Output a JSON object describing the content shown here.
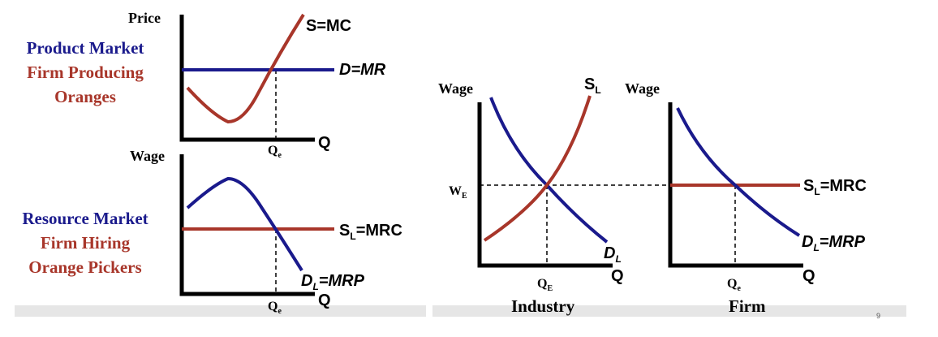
{
  "colors": {
    "blue": "#1a1a8c",
    "red": "#a8362a",
    "axis": "#000000",
    "shadow": "#e4e4e4"
  },
  "product_panel": {
    "line1": "Product Market",
    "line2": "Firm Producing",
    "line3": "Oranges",
    "y_axis": "Price",
    "x_axis": "Q",
    "x_tick": "Q",
    "x_tick_sub": "e",
    "supply_label": "S=MC",
    "demand_label": "D=MR"
  },
  "resource_panel": {
    "line1": "Resource Market",
    "line2": "Firm Hiring",
    "line3": "Orange Pickers",
    "y_axis": "Wage",
    "x_axis": "Q",
    "x_tick": "Q",
    "x_tick_sub": "e",
    "supply_label_main": "S",
    "supply_label_sub": "L",
    "supply_label_rest": "=MRC",
    "demand_label_main": "D",
    "demand_label_sub": "L",
    "demand_label_rest": "=MRP"
  },
  "industry_panel": {
    "y_axis": "Wage",
    "x_axis": "Q",
    "y_tick": "W",
    "y_tick_sub": "E",
    "x_tick": "Q",
    "x_tick_sub": "E",
    "supply_label_main": "S",
    "supply_label_sub": "L",
    "demand_label_main": "D",
    "demand_label_sub": "L",
    "caption": "Industry"
  },
  "firm_panel": {
    "y_axis": "Wage",
    "x_axis": "Q",
    "x_tick": "Q",
    "x_tick_sub": "e",
    "supply_label_main": "S",
    "supply_label_sub": "L",
    "supply_label_rest": "=MRC",
    "demand_label_main": "D",
    "demand_label_sub": "L",
    "demand_label_rest": "=MRP",
    "caption": "Firm"
  },
  "slide_number": "9"
}
